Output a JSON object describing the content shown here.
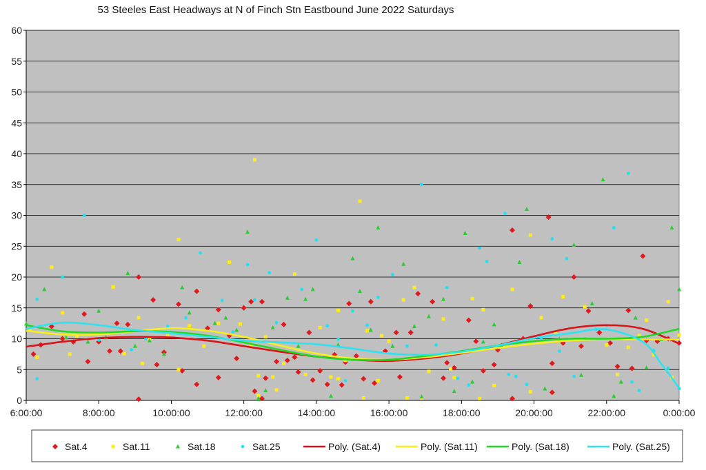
{
  "chart_data": {
    "type": "scatter",
    "title": "53 Steeles East Headways at N of Finch Stn Eastbound June 2022  Saturdays",
    "xlabel": "",
    "ylabel": "",
    "xlim": [
      6,
      24
    ],
    "ylim": [
      0,
      60
    ],
    "grid": true,
    "legend_position": "bottom",
    "x_ticks": [
      6,
      8,
      10,
      12,
      14,
      16,
      18,
      20,
      22,
      24
    ],
    "x_tick_labels": [
      "6:00:00",
      "8:00:00",
      "10:00:00",
      "12:00:00",
      "14:00:00",
      "16:00:00",
      "18:00:00",
      "20:00:00",
      "22:00:00",
      "0:00:00"
    ],
    "y_ticks": [
      0,
      5,
      10,
      15,
      20,
      25,
      30,
      35,
      40,
      45,
      50,
      55,
      60
    ],
    "y_tick_labels": [
      "0",
      "5",
      "10",
      "15",
      "20",
      "25",
      "30",
      "35",
      "40",
      "45",
      "50",
      "55",
      "60"
    ],
    "series": [
      {
        "name": "Sat.4",
        "color": "#e0191c",
        "marker": "diamond",
        "points": [
          [
            6.2,
            7.5
          ],
          [
            6.4,
            9
          ],
          [
            6.7,
            12
          ],
          [
            7,
            10
          ],
          [
            7.3,
            9.5
          ],
          [
            7.6,
            14
          ],
          [
            7.7,
            6.3
          ],
          [
            8,
            9.5
          ],
          [
            8.3,
            8
          ],
          [
            8.5,
            12.5
          ],
          [
            8.6,
            8
          ],
          [
            8.8,
            12.3
          ],
          [
            9.1,
            20
          ],
          [
            9.1,
            0.2
          ],
          [
            9.5,
            16.3
          ],
          [
            9.6,
            5.8
          ],
          [
            9.8,
            7.8
          ],
          [
            10.2,
            15.6
          ],
          [
            10.3,
            4.8
          ],
          [
            10.7,
            17.7
          ],
          [
            10.7,
            2.6
          ],
          [
            11.0,
            11.7
          ],
          [
            11.3,
            14.7
          ],
          [
            11.3,
            3.7
          ],
          [
            11.6,
            10.5
          ],
          [
            11.8,
            6.8
          ],
          [
            12.0,
            15.0
          ],
          [
            12.2,
            16.0
          ],
          [
            12.3,
            1.5
          ],
          [
            12.5,
            16.0
          ],
          [
            12.6,
            3.6
          ],
          [
            12.5,
            0.3
          ],
          [
            12.9,
            6.3
          ],
          [
            13.1,
            12.3
          ],
          [
            13.2,
            6.5
          ],
          [
            13.4,
            7.0
          ],
          [
            13.5,
            4.6
          ],
          [
            13.8,
            11.0
          ],
          [
            13.9,
            3.3
          ],
          [
            14.1,
            4.8
          ],
          [
            14.3,
            2.6
          ],
          [
            14.5,
            7.4
          ],
          [
            14.7,
            2.5
          ],
          [
            14.8,
            6.2
          ],
          [
            14.9,
            15.7
          ],
          [
            15.1,
            7.2
          ],
          [
            15.3,
            3.5
          ],
          [
            15.5,
            16.0
          ],
          [
            15.6,
            2.8
          ],
          [
            15.9,
            8.0
          ],
          [
            16.2,
            11.0
          ],
          [
            16.3,
            3.8
          ],
          [
            16.6,
            11.0
          ],
          [
            16.8,
            17.3
          ],
          [
            17.2,
            16.0
          ],
          [
            17.5,
            3.6
          ],
          [
            17.6,
            6.1
          ],
          [
            17.8,
            5.3
          ],
          [
            18.2,
            13.0
          ],
          [
            18.4,
            9.6
          ],
          [
            18.6,
            4.8
          ],
          [
            18.9,
            5.8
          ],
          [
            19.0,
            8.2
          ],
          [
            19.4,
            27.6
          ],
          [
            19.4,
            0.3
          ],
          [
            19.7,
            10.0
          ],
          [
            19.9,
            15.3
          ],
          [
            20.4,
            29.7
          ],
          [
            20.5,
            6.0
          ],
          [
            20.5,
            1.3
          ],
          [
            20.8,
            9.3
          ],
          [
            21.1,
            20.0
          ],
          [
            21.3,
            8.8
          ],
          [
            21.5,
            14.5
          ],
          [
            21.8,
            11.0
          ],
          [
            22.1,
            9.3
          ],
          [
            22.3,
            5.5
          ],
          [
            22.6,
            14.6
          ],
          [
            22.7,
            5.2
          ],
          [
            23.0,
            23.4
          ],
          [
            23.1,
            9.7
          ],
          [
            23.4,
            9.6
          ],
          [
            23.7,
            10.0
          ],
          [
            24.0,
            9.3
          ]
        ]
      },
      {
        "name": "Sat.11",
        "color": "#ffeb1a",
        "marker": "square",
        "points": [
          [
            6.1,
            11.5
          ],
          [
            6.3,
            7.0
          ],
          [
            6.7,
            21.6
          ],
          [
            7.0,
            14.2
          ],
          [
            7.2,
            7.5
          ],
          [
            7.4,
            10.4
          ],
          [
            8.4,
            18.4
          ],
          [
            8.7,
            7.6
          ],
          [
            9.1,
            13.4
          ],
          [
            9.2,
            6.0
          ],
          [
            9.4,
            10.0
          ],
          [
            9.9,
            10.5
          ],
          [
            10.2,
            26.1
          ],
          [
            10.2,
            5.0
          ],
          [
            10.5,
            12.1
          ],
          [
            10.9,
            8.8
          ],
          [
            11.3,
            12.5
          ],
          [
            11.6,
            22.4
          ],
          [
            11.9,
            12.4
          ],
          [
            12.2,
            9.0
          ],
          [
            12.3,
            39.0
          ],
          [
            12.4,
            4.0
          ],
          [
            12.4,
            0.8
          ],
          [
            12.6,
            10.3
          ],
          [
            12.8,
            3.8
          ],
          [
            12.9,
            1.7
          ],
          [
            13.1,
            6.0
          ],
          [
            13.4,
            20.5
          ],
          [
            13.7,
            4.2
          ],
          [
            14.1,
            11.8
          ],
          [
            14.4,
            3.8
          ],
          [
            14.6,
            14.6
          ],
          [
            14.6,
            3.5
          ],
          [
            14.8,
            6.5
          ],
          [
            15.2,
            32.3
          ],
          [
            15.3,
            0.4
          ],
          [
            15.4,
            11.3
          ],
          [
            15.7,
            3.2
          ],
          [
            15.8,
            10.5
          ],
          [
            16.0,
            9.6
          ],
          [
            16.4,
            16.3
          ],
          [
            16.5,
            0.4
          ],
          [
            16.7,
            18.3
          ],
          [
            16.9,
            0.4
          ],
          [
            17.1,
            4.7
          ],
          [
            17.5,
            13.2
          ],
          [
            17.7,
            5.1
          ],
          [
            17.8,
            3.7
          ],
          [
            18.3,
            16.5
          ],
          [
            18.5,
            0.3
          ],
          [
            18.6,
            14.7
          ],
          [
            18.9,
            2.4
          ],
          [
            19.4,
            18.0
          ],
          [
            19.9,
            26.8
          ],
          [
            19.9,
            1.4
          ],
          [
            20.2,
            13.4
          ],
          [
            20.6,
            11.1
          ],
          [
            20.8,
            16.8
          ],
          [
            21.4,
            15.2
          ],
          [
            22.0,
            9.0
          ],
          [
            22.3,
            4.2
          ],
          [
            22.6,
            8.6
          ],
          [
            22.9,
            10.5
          ],
          [
            23.1,
            13.0
          ],
          [
            23.3,
            7.4
          ],
          [
            23.7,
            16.0
          ],
          [
            23.8,
            3.7
          ],
          [
            24.0,
            10.6
          ]
        ]
      },
      {
        "name": "Sat.18",
        "color": "#2eca33",
        "marker": "triangle",
        "points": [
          [
            6.0,
            12.4
          ],
          [
            6.5,
            18.0
          ],
          [
            7.1,
            10.2
          ],
          [
            7.7,
            9.5
          ],
          [
            8.0,
            14.5
          ],
          [
            8.2,
            10.2
          ],
          [
            8.8,
            20.6
          ],
          [
            9.0,
            8.8
          ],
          [
            9.4,
            9.7
          ],
          [
            9.8,
            7.5
          ],
          [
            10.3,
            18.3
          ],
          [
            10.5,
            14.2
          ],
          [
            11.2,
            12.5
          ],
          [
            11.5,
            13.4
          ],
          [
            11.8,
            11.4
          ],
          [
            12.1,
            27.3
          ],
          [
            12.4,
            0.3
          ],
          [
            12.6,
            1.6
          ],
          [
            12.8,
            11.8
          ],
          [
            13.2,
            16.6
          ],
          [
            13.5,
            8.8
          ],
          [
            13.7,
            16.4
          ],
          [
            13.9,
            18.0
          ],
          [
            14.4,
            0.7
          ],
          [
            14.6,
            9.0
          ],
          [
            15.0,
            23.0
          ],
          [
            15.2,
            17.7
          ],
          [
            15.5,
            11.4
          ],
          [
            15.7,
            28.0
          ],
          [
            16.1,
            8.8
          ],
          [
            16.4,
            22.1
          ],
          [
            16.7,
            12.0
          ],
          [
            16.9,
            0.6
          ],
          [
            17.1,
            13.6
          ],
          [
            17.5,
            16.4
          ],
          [
            17.8,
            1.5
          ],
          [
            18.1,
            27.1
          ],
          [
            18.3,
            3.0
          ],
          [
            18.6,
            9.5
          ],
          [
            18.9,
            12.3
          ],
          [
            19.1,
            9.0
          ],
          [
            19.6,
            22.4
          ],
          [
            19.8,
            31.0
          ],
          [
            20.3,
            1.9
          ],
          [
            20.7,
            10.0
          ],
          [
            21.1,
            25.2
          ],
          [
            21.3,
            4.1
          ],
          [
            21.6,
            15.7
          ],
          [
            21.9,
            35.8
          ],
          [
            22.2,
            0.7
          ],
          [
            22.4,
            3.0
          ],
          [
            22.8,
            13.4
          ],
          [
            23.1,
            5.3
          ],
          [
            23.5,
            9.9
          ],
          [
            23.8,
            28.0
          ],
          [
            24.0,
            18.0
          ]
        ]
      },
      {
        "name": "Sat.25",
        "color": "#21e0f1",
        "marker": "circle",
        "points": [
          [
            6.3,
            16.4
          ],
          [
            6.3,
            3.5
          ],
          [
            7.0,
            20.0
          ],
          [
            7.6,
            30.0
          ],
          [
            8.0,
            9.8
          ],
          [
            8.9,
            8.2
          ],
          [
            9.3,
            10.0
          ],
          [
            9.9,
            12.0
          ],
          [
            10.4,
            13.4
          ],
          [
            10.8,
            23.9
          ],
          [
            11.4,
            16.2
          ],
          [
            11.7,
            11.1
          ],
          [
            12.1,
            22.0
          ],
          [
            12.3,
            16.3
          ],
          [
            12.7,
            20.7
          ],
          [
            12.9,
            12.6
          ],
          [
            13.6,
            18.0
          ],
          [
            14.0,
            26.0
          ],
          [
            14.3,
            12.1
          ],
          [
            14.6,
            9.9
          ],
          [
            14.8,
            3.2
          ],
          [
            15.0,
            14.5
          ],
          [
            15.4,
            12.2
          ],
          [
            15.7,
            16.7
          ],
          [
            16.1,
            20.4
          ],
          [
            16.5,
            8.8
          ],
          [
            16.9,
            35.0
          ],
          [
            17.3,
            9.0
          ],
          [
            17.6,
            18.3
          ],
          [
            17.9,
            3.6
          ],
          [
            18.2,
            2.5
          ],
          [
            18.5,
            24.7
          ],
          [
            18.7,
            22.5
          ],
          [
            19.0,
            8.6
          ],
          [
            19.2,
            30.3
          ],
          [
            19.3,
            4.2
          ],
          [
            19.5,
            3.9
          ],
          [
            19.8,
            2.6
          ],
          [
            20.2,
            10.1
          ],
          [
            20.5,
            26.2
          ],
          [
            20.7,
            8.0
          ],
          [
            20.9,
            23.0
          ],
          [
            21.1,
            3.9
          ],
          [
            21.4,
            10.0
          ],
          [
            21.7,
            11.5
          ],
          [
            22.0,
            12.1
          ],
          [
            22.2,
            28.0
          ],
          [
            22.6,
            36.8
          ],
          [
            22.7,
            3.0
          ],
          [
            22.9,
            1.6
          ],
          [
            23.3,
            8.1
          ],
          [
            23.7,
            5.2
          ],
          [
            24.0,
            1.9
          ]
        ]
      }
    ],
    "trendlines": [
      {
        "name": "Poly. (Sat.4)",
        "color": "#d8141a",
        "x": [
          6,
          7,
          8,
          9,
          10,
          11,
          12,
          13,
          14,
          15,
          16,
          17,
          18,
          19,
          20,
          21,
          22,
          23,
          24
        ],
        "y": [
          8.7,
          9.5,
          10.1,
          10.3,
          10.2,
          9.7,
          8.8,
          7.9,
          7.1,
          6.6,
          6.4,
          6.8,
          7.6,
          8.9,
          10.4,
          11.7,
          12.2,
          11.6,
          9.2
        ]
      },
      {
        "name": "Poly. (Sat.11)",
        "color": "#f6ee1e",
        "x": [
          6,
          7,
          8,
          9,
          10,
          11,
          12,
          13,
          14,
          15,
          16,
          17,
          18,
          19,
          20,
          21,
          22,
          23,
          24
        ],
        "y": [
          11.3,
          10.7,
          10.7,
          11.2,
          11.7,
          11.3,
          10.3,
          8.9,
          7.6,
          6.8,
          6.6,
          7.0,
          7.7,
          8.5,
          9.2,
          9.7,
          9.9,
          9.9,
          9.9
        ]
      },
      {
        "name": "Poly. (Sat.18)",
        "color": "#22d724",
        "x": [
          6,
          7,
          8,
          9,
          10,
          11,
          12,
          13,
          14,
          15,
          16,
          17,
          18,
          19,
          20,
          21,
          22,
          23,
          24
        ],
        "y": [
          12.2,
          11.2,
          11.0,
          11.2,
          11.1,
          10.5,
          9.4,
          8.2,
          7.1,
          6.6,
          6.6,
          7.2,
          8.0,
          8.9,
          9.6,
          10.0,
          10.0,
          10.3,
          11.6
        ]
      },
      {
        "name": "Poly. (Sat.25)",
        "color": "#2ee2ee",
        "x": [
          6,
          7,
          8,
          9,
          10,
          11,
          12,
          13,
          14,
          15,
          16,
          17,
          18,
          19,
          20,
          21,
          22,
          23,
          23.5,
          24
        ],
        "y": [
          11.6,
          12.6,
          12.2,
          11.4,
          10.9,
          10.3,
          9.7,
          9.4,
          9.1,
          8.4,
          7.6,
          7.4,
          7.9,
          8.9,
          10.1,
          10.9,
          11.5,
          9.5,
          6.0,
          2.0
        ]
      }
    ]
  }
}
